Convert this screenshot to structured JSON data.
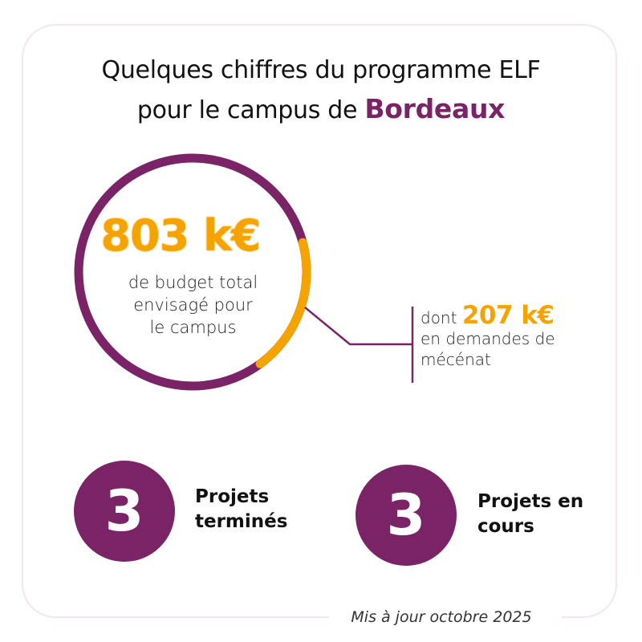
{
  "title": {
    "line1": "Quelques chiffres du programme ELF",
    "line2_prefix": "pour le campus de ",
    "line2_highlight": "Bordeaux"
  },
  "budget": {
    "amount": "803 k€",
    "desc_line1": "de budget total",
    "desc_line2": "envisagé pour",
    "desc_line3": "le campus",
    "total_keur": 803
  },
  "donations": {
    "prefix": "dont ",
    "amount": "207 k€",
    "line2": "en demandes de",
    "line3": "mécénat",
    "amount_keur": 207
  },
  "stats": [
    {
      "value": "3",
      "label_line1": "Projets",
      "label_line2": "terminés"
    },
    {
      "value": "3",
      "label_line1": "Projets en",
      "label_line2": "cours"
    }
  ],
  "footer": "Mis à jour octobre 2025",
  "colors": {
    "brand_purple": "#7b2367",
    "accent_orange": "#f5a300"
  }
}
